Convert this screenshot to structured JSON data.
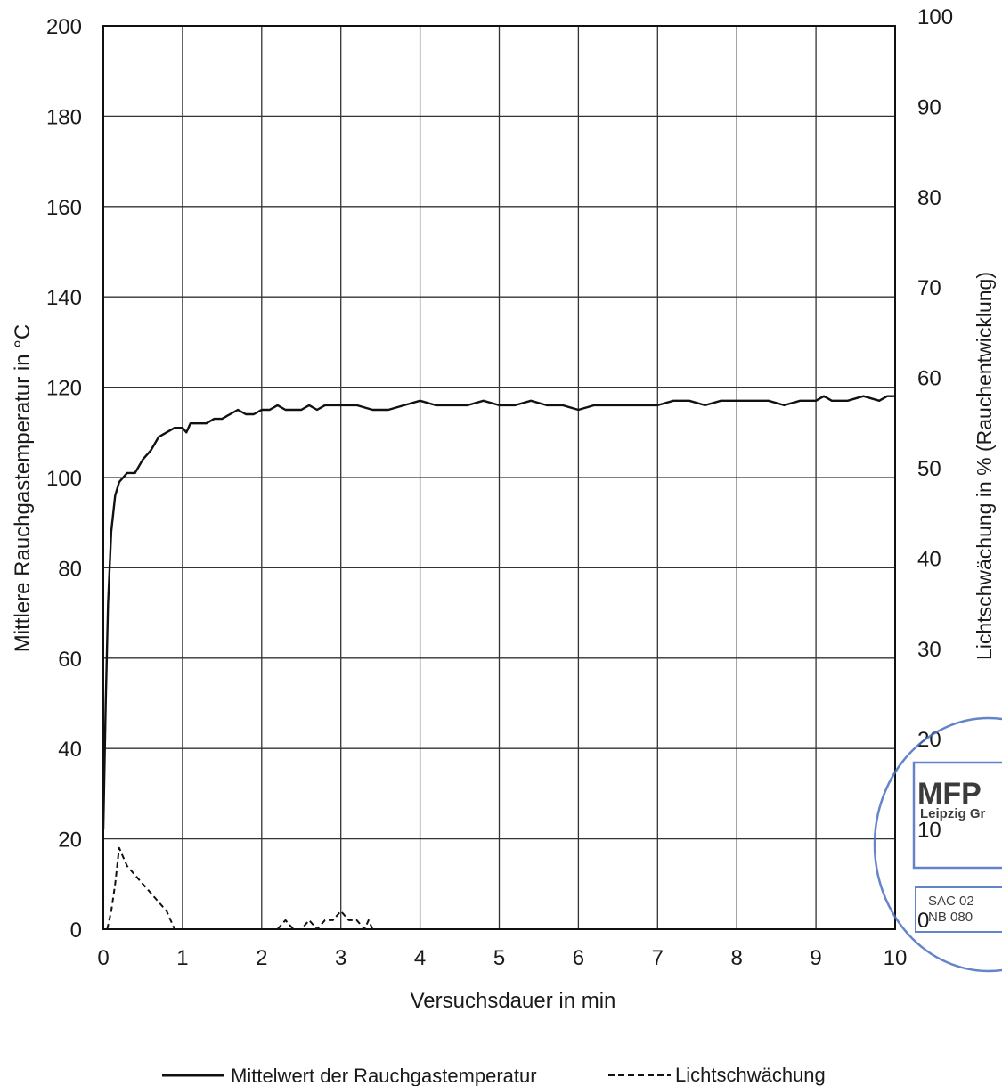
{
  "chart_data": {
    "type": "line",
    "title": "",
    "xlabel": "Versuchsdauer in min",
    "ylabel": "Mittlere Rauchgastemperatur in °C",
    "y2label": "Lichtschwächung in % (Rauchentwicklung)",
    "xlim": [
      0,
      10
    ],
    "ylim": [
      0,
      200
    ],
    "y2lim": [
      0,
      100
    ],
    "x_ticks": [
      "0",
      "1",
      "2",
      "3",
      "4",
      "5",
      "6",
      "7",
      "8",
      "9",
      "10"
    ],
    "y_ticks": [
      "0",
      "20",
      "40",
      "60",
      "80",
      "100",
      "120",
      "140",
      "160",
      "180",
      "200"
    ],
    "y2_ticks": [
      "0",
      "10",
      "20",
      "30",
      "40",
      "50",
      "60",
      "70",
      "80",
      "90",
      "100"
    ],
    "grid": true,
    "legend_position": "bottom",
    "series": [
      {
        "name": "Mittelwert der Rauchgastemperatur",
        "axis": "left",
        "style": "solid",
        "x": [
          0,
          0.03,
          0.06,
          0.1,
          0.15,
          0.2,
          0.25,
          0.3,
          0.4,
          0.5,
          0.6,
          0.7,
          0.8,
          0.9,
          1.0,
          1.05,
          1.1,
          1.2,
          1.3,
          1.4,
          1.5,
          1.6,
          1.7,
          1.8,
          1.9,
          2.0,
          2.1,
          2.2,
          2.3,
          2.4,
          2.5,
          2.6,
          2.7,
          2.8,
          2.9,
          3.0,
          3.2,
          3.4,
          3.6,
          3.8,
          4.0,
          4.2,
          4.4,
          4.6,
          4.8,
          5.0,
          5.2,
          5.4,
          5.6,
          5.8,
          6.0,
          6.2,
          6.4,
          6.6,
          6.8,
          7.0,
          7.2,
          7.4,
          7.6,
          7.8,
          8.0,
          8.2,
          8.4,
          8.6,
          8.8,
          9.0,
          9.1,
          9.2,
          9.4,
          9.6,
          9.8,
          9.9,
          10.0
        ],
        "values": [
          22,
          50,
          72,
          88,
          96,
          99,
          100,
          101,
          101,
          104,
          106,
          109,
          110,
          111,
          111,
          110,
          112,
          112,
          112,
          113,
          113,
          114,
          115,
          114,
          114,
          115,
          115,
          116,
          115,
          115,
          115,
          116,
          115,
          116,
          116,
          116,
          116,
          115,
          115,
          116,
          117,
          116,
          116,
          116,
          117,
          116,
          116,
          117,
          116,
          116,
          115,
          116,
          116,
          116,
          116,
          116,
          117,
          117,
          116,
          117,
          117,
          117,
          117,
          116,
          117,
          117,
          118,
          117,
          117,
          118,
          117,
          118,
          118
        ]
      },
      {
        "name": "Lichtschwächung",
        "axis": "right",
        "style": "dashed",
        "x": [
          0.05,
          0.1,
          0.15,
          0.2,
          0.25,
          0.3,
          0.4,
          0.5,
          0.6,
          0.7,
          0.8,
          0.9,
          1.0,
          2.2,
          2.3,
          2.4,
          2.5,
          2.6,
          2.7,
          2.8,
          2.9,
          3.0,
          3.1,
          3.2,
          3.3,
          3.35,
          3.4
        ],
        "values": [
          0,
          2,
          5,
          9,
          8,
          7,
          6,
          5,
          4,
          3,
          2,
          0,
          0,
          0,
          1,
          0,
          0,
          1,
          0,
          1,
          1,
          2,
          1,
          1,
          0,
          1,
          0
        ]
      }
    ]
  },
  "stamp": {
    "lines": [
      "Leipzig Gr",
      "SAC 02",
      "NB 080"
    ],
    "color": "#4a6fc0"
  }
}
